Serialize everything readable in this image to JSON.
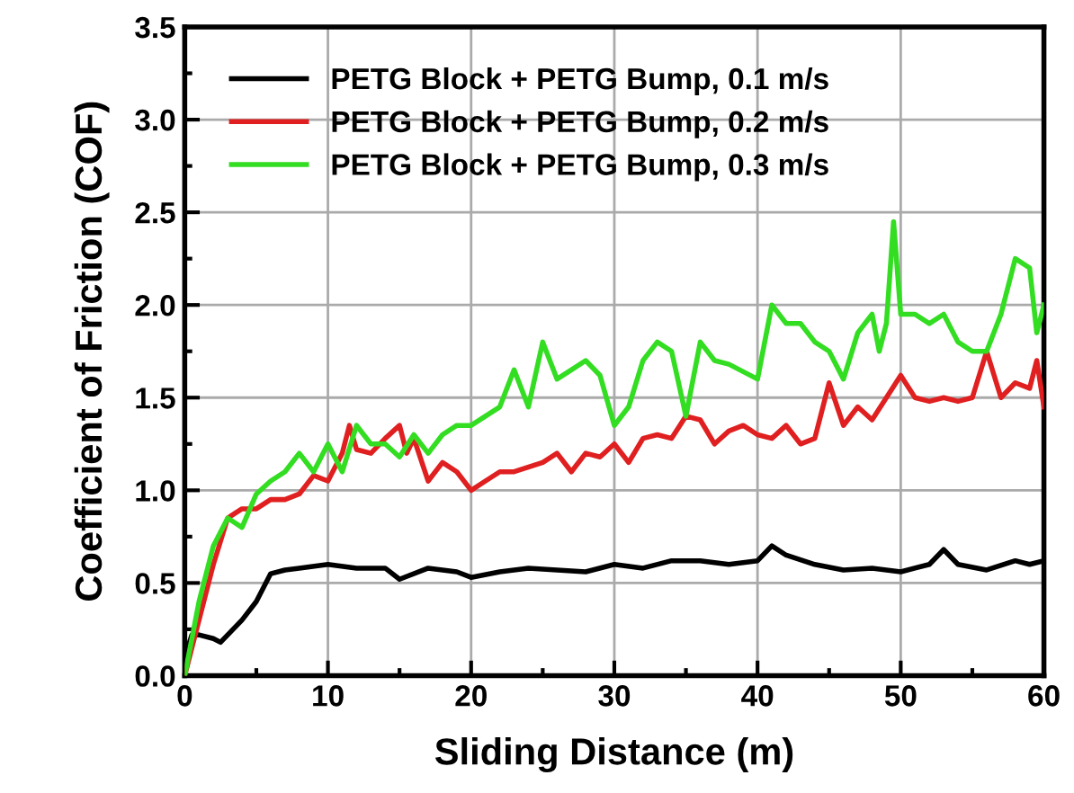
{
  "chart_data": {
    "type": "line",
    "xlabel": "Sliding Distance (m)",
    "ylabel": "Coefficient of Friction (COF)",
    "xlim": [
      0,
      60
    ],
    "ylim": [
      0,
      3.5
    ],
    "xticks": [
      0,
      10,
      20,
      30,
      40,
      50,
      60
    ],
    "yticks": [
      {
        "value": 0,
        "label": "0.0"
      },
      {
        "value": 0.5,
        "label": "0.5"
      },
      {
        "value": 1,
        "label": "1.0"
      },
      {
        "value": 1.5,
        "label": "1.5"
      },
      {
        "value": 2,
        "label": "2.0"
      },
      {
        "value": 2.5,
        "label": "2.5"
      },
      {
        "value": 3,
        "label": "3.0"
      },
      {
        "value": 3.5,
        "label": "3.5"
      }
    ],
    "grid": true,
    "legend": "top left",
    "line_style": "solid",
    "marker": "none",
    "series": [
      {
        "name": "PETG Block + PETG Bump, 0.1 m/s",
        "color": "#000000",
        "x": [
          0,
          0.5,
          1,
          2,
          2.5,
          3,
          4,
          5,
          6,
          7,
          8,
          10,
          12,
          14,
          15,
          17,
          19,
          20,
          22,
          24,
          26,
          28,
          30,
          32,
          34,
          36,
          38,
          40,
          41,
          42,
          44,
          46,
          48,
          50,
          52,
          53,
          54,
          56,
          58,
          59,
          60
        ],
        "values": [
          0.1,
          0.22,
          0.22,
          0.2,
          0.18,
          0.22,
          0.3,
          0.4,
          0.55,
          0.57,
          0.58,
          0.6,
          0.58,
          0.58,
          0.52,
          0.58,
          0.56,
          0.53,
          0.56,
          0.58,
          0.57,
          0.56,
          0.6,
          0.58,
          0.62,
          0.62,
          0.6,
          0.62,
          0.7,
          0.65,
          0.6,
          0.57,
          0.58,
          0.56,
          0.6,
          0.68,
          0.6,
          0.57,
          0.62,
          0.6,
          0.62
        ]
      },
      {
        "name": "PETG Block + PETG Bump, 0.2 m/s",
        "color": "#e02020",
        "x": [
          0,
          1,
          2,
          3,
          4,
          5,
          6,
          7,
          8,
          9,
          10,
          11,
          11.5,
          12,
          13,
          14,
          15,
          15.5,
          16,
          17,
          18,
          19,
          20,
          21,
          22,
          23,
          25,
          26,
          27,
          28,
          29,
          30,
          31,
          32,
          33,
          34,
          35,
          36,
          37,
          38,
          39,
          40,
          41,
          42,
          43,
          44,
          45,
          46,
          47,
          48,
          49,
          50,
          51,
          52,
          53,
          54,
          55,
          56,
          57,
          58,
          59,
          59.5,
          60
        ],
        "values": [
          0,
          0.3,
          0.6,
          0.85,
          0.9,
          0.9,
          0.95,
          0.95,
          0.98,
          1.08,
          1.05,
          1.2,
          1.35,
          1.22,
          1.2,
          1.28,
          1.35,
          1.2,
          1.28,
          1.05,
          1.15,
          1.1,
          1.0,
          1.05,
          1.1,
          1.1,
          1.15,
          1.2,
          1.1,
          1.2,
          1.18,
          1.25,
          1.15,
          1.28,
          1.3,
          1.28,
          1.4,
          1.38,
          1.25,
          1.32,
          1.35,
          1.3,
          1.28,
          1.35,
          1.25,
          1.28,
          1.58,
          1.35,
          1.45,
          1.38,
          1.5,
          1.62,
          1.5,
          1.48,
          1.5,
          1.48,
          1.5,
          1.75,
          1.5,
          1.58,
          1.55,
          1.7,
          1.45
        ]
      },
      {
        "name": "PETG Block + PETG Bump, 0.3 m/s",
        "color": "#33dd22",
        "x": [
          0,
          1,
          2,
          3,
          4,
          5,
          6,
          7,
          8,
          9,
          10,
          11,
          12,
          13,
          14,
          15,
          16,
          17,
          18,
          19,
          20,
          21,
          22,
          23,
          24,
          25,
          26,
          27,
          28,
          29,
          30,
          31,
          32,
          33,
          34,
          35,
          36,
          37,
          38,
          40,
          41,
          42,
          43,
          44,
          45,
          46,
          47,
          48,
          48.5,
          49,
          49.5,
          50,
          51,
          52,
          53,
          54,
          55,
          56,
          57,
          58,
          59,
          59.5,
          60
        ],
        "values": [
          0,
          0.4,
          0.7,
          0.85,
          0.8,
          0.98,
          1.05,
          1.1,
          1.2,
          1.1,
          1.25,
          1.1,
          1.35,
          1.25,
          1.25,
          1.18,
          1.3,
          1.2,
          1.3,
          1.35,
          1.35,
          1.4,
          1.45,
          1.65,
          1.45,
          1.8,
          1.6,
          1.65,
          1.7,
          1.62,
          1.35,
          1.45,
          1.7,
          1.8,
          1.75,
          1.4,
          1.8,
          1.7,
          1.68,
          1.6,
          2.0,
          1.9,
          1.9,
          1.8,
          1.75,
          1.6,
          1.85,
          1.95,
          1.75,
          1.9,
          2.45,
          1.95,
          1.95,
          1.9,
          1.95,
          1.8,
          1.75,
          1.75,
          1.95,
          2.25,
          2.2,
          1.85,
          2.0
        ]
      }
    ]
  }
}
